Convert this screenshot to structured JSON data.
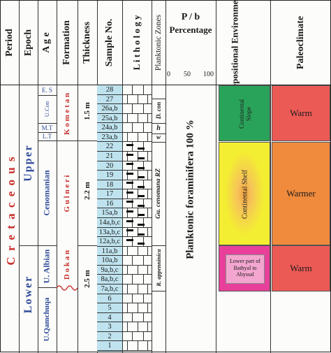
{
  "headers": {
    "period": "Period",
    "epoch": "Epoch",
    "age": "A g e",
    "formation": "Formation",
    "thickness": "Thickness",
    "sample_no": "Sample No.",
    "lithology": "L i t h o l o g y",
    "planktonic_zones": "Planktonic Zones",
    "pb_line1": "P / b",
    "pb_line2": "Percentage",
    "depositional_environment": "Depositional Environment",
    "paleoclimate": "Paleoclimate"
  },
  "pb_scale": [
    "0",
    "50",
    "100"
  ],
  "period": {
    "name": "C r e t a c e o u s",
    "lower": "Lower",
    "upper": "Upper"
  },
  "ages": {
    "es": "E. S",
    "ucon": "U.Con",
    "mt": "M.T",
    "lt": "L.T",
    "cenomanian": "Cenomanian",
    "ualbian": "U. Albian",
    "uqamchuqa": "U.Qamchuqa"
  },
  "formations": {
    "kometan": "K o m e t a n",
    "gulneri": "G u l n e r i",
    "dokan": "D o k a n"
  },
  "thickness": {
    "kometan": "1.5 m",
    "gulneri": "2.2 m",
    "dokan": "2.5 m"
  },
  "samples": [
    "28",
    "27",
    "26a,b",
    "25a,b",
    "24a,b",
    "23a,b",
    "22",
    "21",
    "20",
    "19",
    "18",
    "17",
    "16",
    "15a,b",
    "14a,b,c",
    "13a,b,c",
    "12a,b,c",
    "11a,b",
    "10a,b",
    "9a,b,c",
    "8a,b,c",
    "7a,b,c",
    "6",
    "5",
    "4",
    "3",
    "2",
    "1"
  ],
  "zones": {
    "dcon": "D. con",
    "h": "h",
    "w": "w",
    "gu_cenomana": "Gu. cenomana RZ",
    "r_appenninica": "R. appenninica"
  },
  "planktonic_text": "Planktonic foraminifera 100 %",
  "environments": {
    "slope": "Continental Slope",
    "shelf": "Continental Shelf",
    "bathyal": "Lower part of Bathyal to Abyssal"
  },
  "climate": {
    "warm1": "Warm",
    "warmer": "Warmer",
    "warm2": "Warm"
  },
  "colors": {
    "sample_fill": "#bfe3ee",
    "slope_green": "#2aa35a",
    "shelf_yellow": "#f4ee32",
    "shelf_orange_center": "#f0a040",
    "bathyal_magenta": "#e8409a",
    "bathyal_box": "#f3a6cf",
    "warm_red": "#ec5a55",
    "warmer_orange": "#f08a3c",
    "period_red": "#c8302c",
    "epoch_blue": "#2f4b9a"
  }
}
